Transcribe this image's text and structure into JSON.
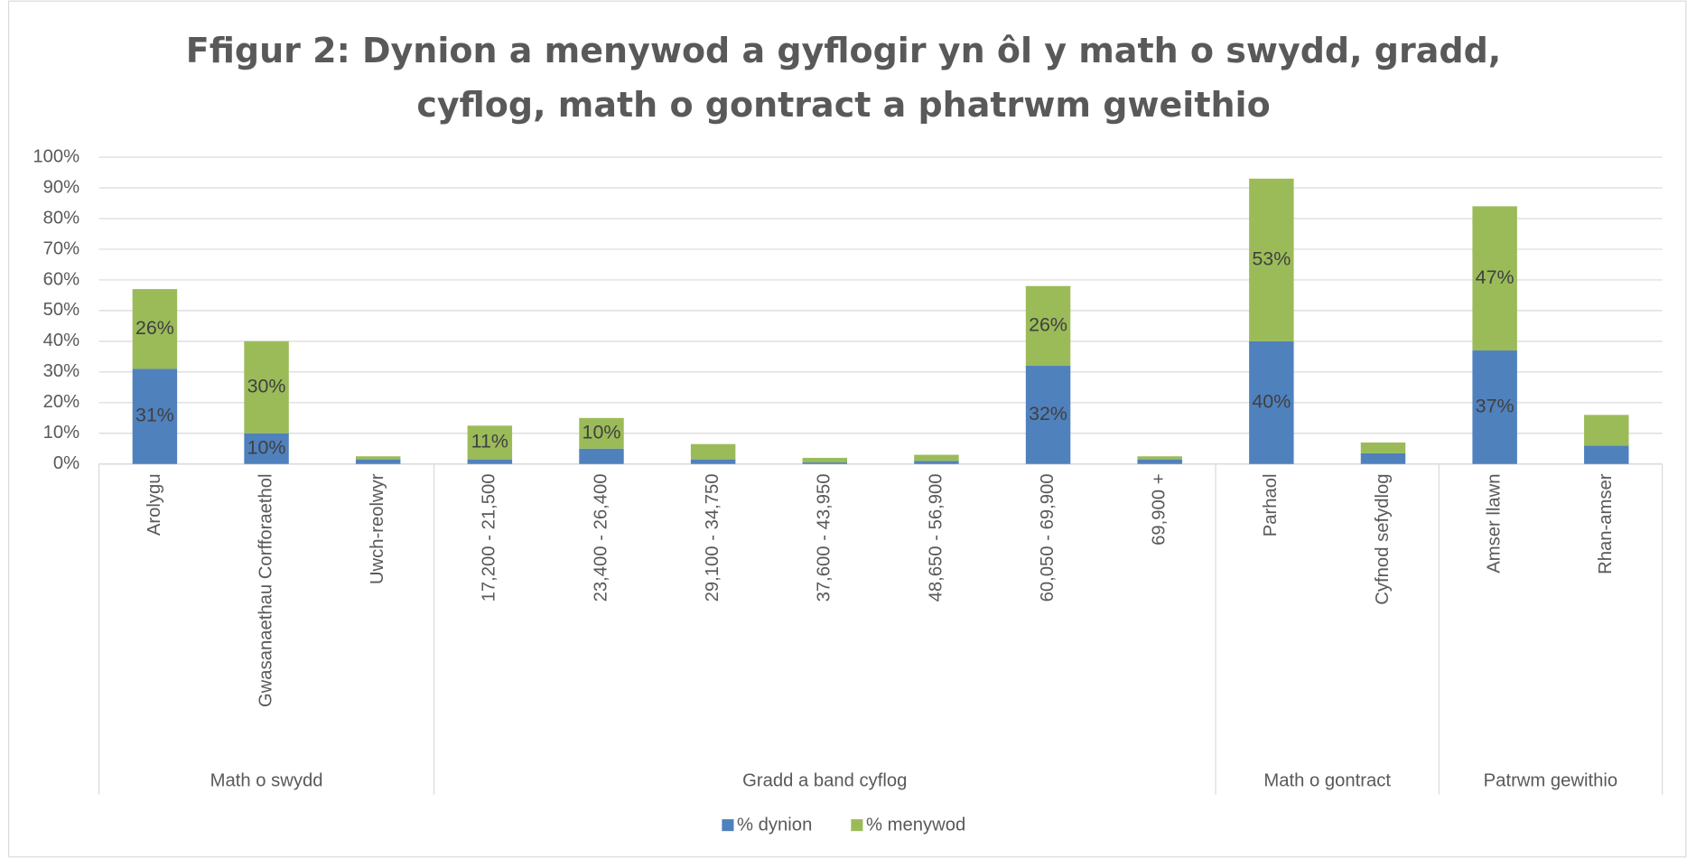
{
  "chart_data": {
    "type": "bar",
    "stacked": true,
    "title": "Ffigur 2: Dynion a menywod a gyflogir yn ôl y math o swydd, gradd,\ncyflog, math o gontract a phatrwm gweithio",
    "groups": [
      {
        "name": "Math o swydd",
        "categories": [
          "Arolygu",
          "Gwasanaethau Corfforaethol",
          "Uwch-reolwyr"
        ]
      },
      {
        "name": "Gradd a band cyflog",
        "categories": [
          "17,200 - 21,500",
          "23,400 - 26,400",
          "29,100 - 34,750",
          "37,600 - 43,950",
          "48,650 - 56,900",
          "60,050 - 69,900",
          "69,900 +"
        ]
      },
      {
        "name": "Math o gontract",
        "categories": [
          "Parhaol",
          "Cyfnod sefydlog"
        ]
      },
      {
        "name": "Patrwm gewithio",
        "categories": [
          "Amser llawn",
          "Rhan-amser"
        ]
      }
    ],
    "series": [
      {
        "name": "% dynion",
        "color": "#4f81bd",
        "values": [
          31,
          10,
          1.5,
          1.5,
          5,
          1.5,
          0.5,
          1,
          32,
          1.5,
          40,
          3.5,
          37,
          6
        ],
        "value_labels": [
          "31%",
          "10%",
          null,
          null,
          null,
          null,
          null,
          null,
          "32%",
          null,
          "40%",
          null,
          "37%",
          null
        ]
      },
      {
        "name": "% menywod",
        "color": "#9bbb59",
        "values": [
          26,
          30,
          1,
          11,
          10,
          5,
          1.5,
          2,
          26,
          1,
          53,
          3.5,
          47,
          10
        ],
        "value_labels": [
          "26%",
          "30%",
          null,
          "11%",
          "10%",
          null,
          null,
          null,
          "26%",
          null,
          "53%",
          null,
          "47%",
          null
        ]
      }
    ],
    "ylim": [
      0,
      100
    ],
    "yticks": [
      {
        "value": 0,
        "label": "0%"
      },
      {
        "value": 10,
        "label": "10%"
      },
      {
        "value": 20,
        "label": "20%"
      },
      {
        "value": 30,
        "label": "30%"
      },
      {
        "value": 40,
        "label": "40%"
      },
      {
        "value": 50,
        "label": "50%"
      },
      {
        "value": 60,
        "label": "60%"
      },
      {
        "value": 70,
        "label": "70%"
      },
      {
        "value": 80,
        "label": "80%"
      },
      {
        "value": 90,
        "label": "90%"
      },
      {
        "value": 100,
        "label": "100%"
      }
    ],
    "grid": true,
    "legend": "bottom"
  }
}
